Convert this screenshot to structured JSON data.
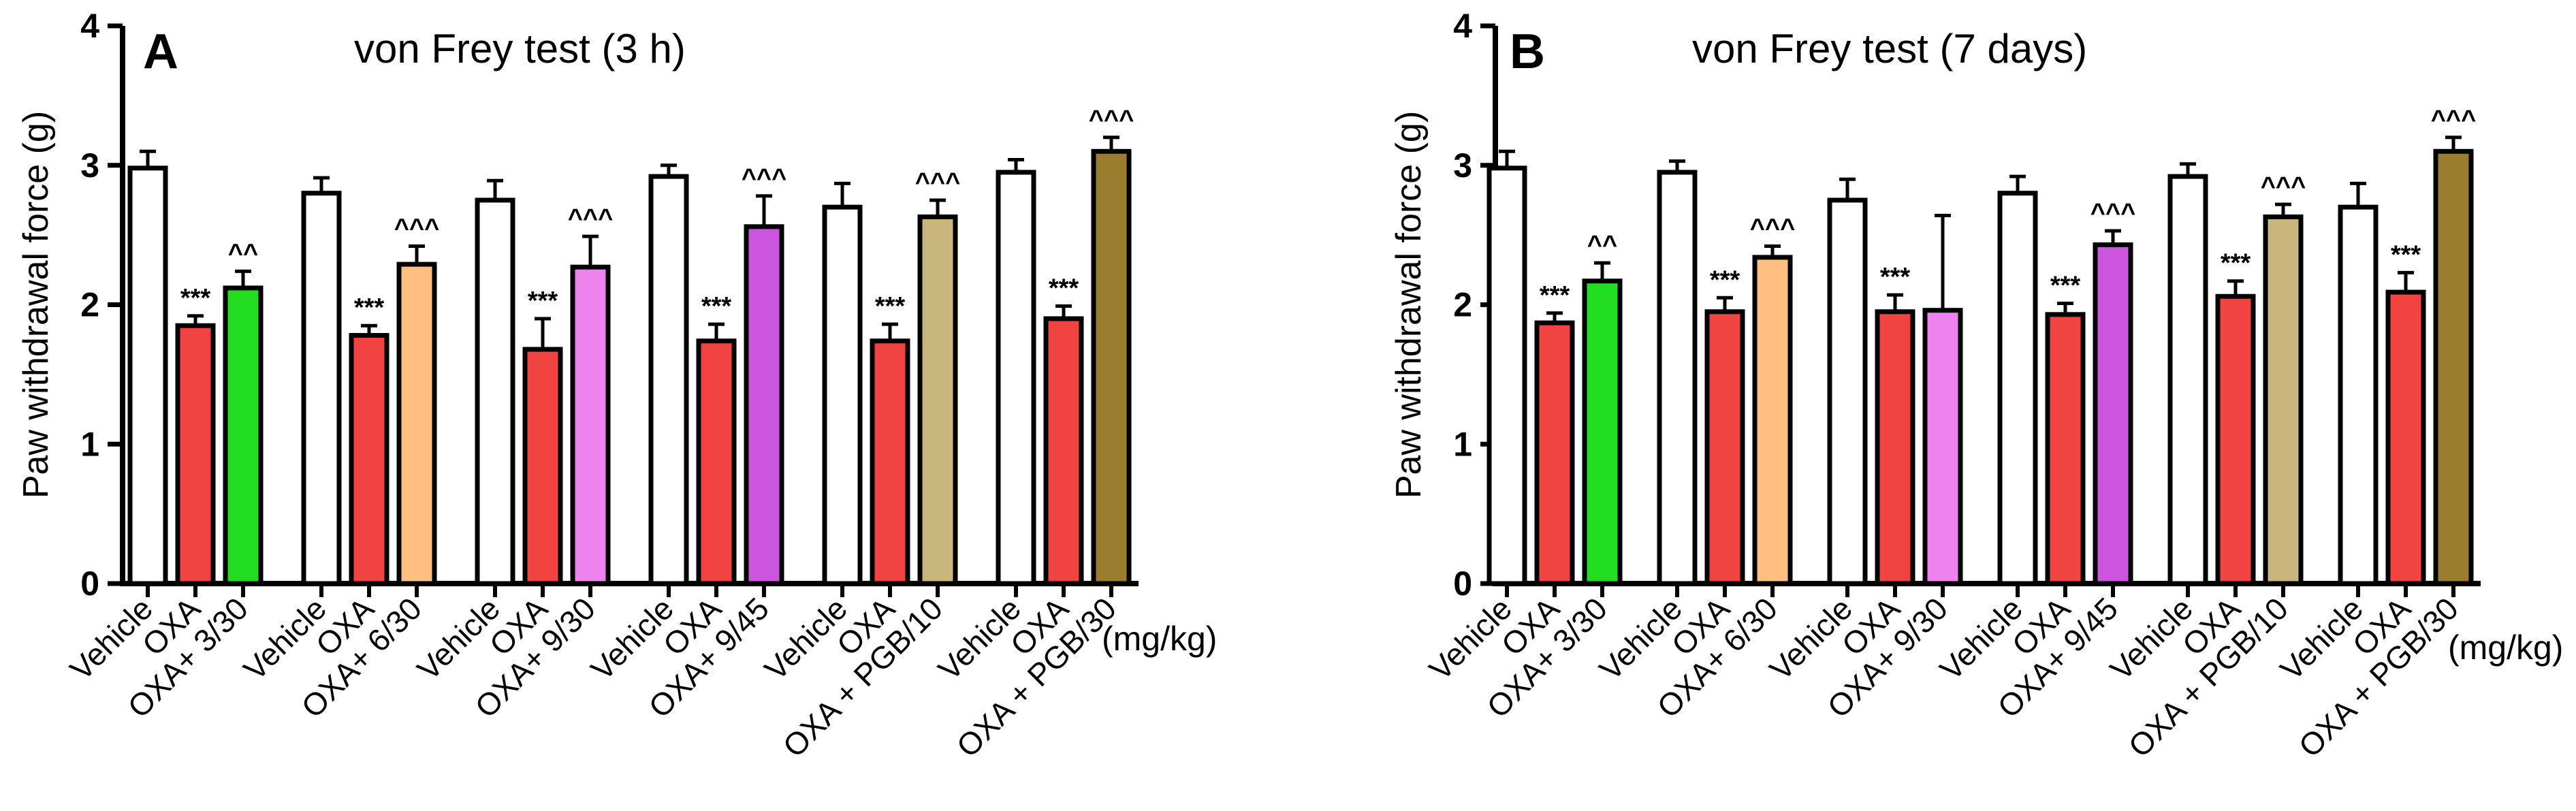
{
  "chart_data": [
    {
      "type": "bar",
      "panel": "A",
      "title": "von Frey test (3 h)",
      "ylabel": "Paw withdrawal force (g)",
      "xlabel": "",
      "unit_label": "(mg/kg)",
      "ylim": [
        0,
        4
      ],
      "yticks": [
        "0",
        "1",
        "2",
        "3",
        "4"
      ],
      "groups": [
        {
          "bars": [
            {
              "label": "Vehicle",
              "value": 2.98,
              "error": 0.12,
              "color": "#ffffff",
              "sig": ""
            },
            {
              "label": "OXA",
              "value": 1.85,
              "error": 0.07,
              "color": "#f24343",
              "sig": "***"
            },
            {
              "label": "OXA+ 3/30",
              "value": 2.12,
              "error": 0.12,
              "color": "#22dd22",
              "sig": "^^"
            }
          ]
        },
        {
          "bars": [
            {
              "label": "Vehicle",
              "value": 2.8,
              "error": 0.11,
              "color": "#ffffff",
              "sig": ""
            },
            {
              "label": "OXA",
              "value": 1.78,
              "error": 0.07,
              "color": "#f24343",
              "sig": "***"
            },
            {
              "label": "OXA+ 6/30",
              "value": 2.29,
              "error": 0.13,
              "color": "#ffbf80",
              "sig": "^^^"
            }
          ]
        },
        {
          "bars": [
            {
              "label": "Vehicle",
              "value": 2.75,
              "error": 0.14,
              "color": "#ffffff",
              "sig": ""
            },
            {
              "label": "OXA",
              "value": 1.68,
              "error": 0.22,
              "color": "#f24343",
              "sig": "***"
            },
            {
              "label": "OXA+ 9/30",
              "value": 2.27,
              "error": 0.22,
              "color": "#ee82ee",
              "sig": "^^^"
            }
          ]
        },
        {
          "bars": [
            {
              "label": "Vehicle",
              "value": 2.92,
              "error": 0.08,
              "color": "#ffffff",
              "sig": ""
            },
            {
              "label": "OXA",
              "value": 1.74,
              "error": 0.12,
              "color": "#f24343",
              "sig": "***"
            },
            {
              "label": "OXA+ 9/45",
              "value": 2.56,
              "error": 0.22,
              "color": "#cc55dd",
              "sig": "^^^"
            }
          ]
        },
        {
          "bars": [
            {
              "label": "Vehicle",
              "value": 2.7,
              "error": 0.17,
              "color": "#ffffff",
              "sig": ""
            },
            {
              "label": "OXA",
              "value": 1.74,
              "error": 0.12,
              "color": "#f24343",
              "sig": "***"
            },
            {
              "label": "OXA + PGB/10",
              "value": 2.63,
              "error": 0.12,
              "color": "#c8b67e",
              "sig": "^^^"
            }
          ]
        },
        {
          "bars": [
            {
              "label": "Vehicle",
              "value": 2.95,
              "error": 0.09,
              "color": "#ffffff",
              "sig": ""
            },
            {
              "label": "OXA",
              "value": 1.9,
              "error": 0.09,
              "color": "#f24343",
              "sig": "***"
            },
            {
              "label": "OXA + PGB/30",
              "value": 3.1,
              "error": 0.1,
              "color": "#9a7d2e",
              "sig": "^^^"
            }
          ]
        }
      ]
    },
    {
      "type": "bar",
      "panel": "B",
      "title": "von Frey test (7 days)",
      "ylabel": "Paw withdrawal force (g)",
      "xlabel": "",
      "unit_label": "(mg/kg)",
      "ylim": [
        0,
        4
      ],
      "yticks": [
        "0",
        "1",
        "2",
        "3",
        "4"
      ],
      "groups": [
        {
          "bars": [
            {
              "label": "Vehicle",
              "value": 2.98,
              "error": 0.12,
              "color": "#ffffff",
              "sig": ""
            },
            {
              "label": "OXA",
              "value": 1.87,
              "error": 0.07,
              "color": "#f24343",
              "sig": "***"
            },
            {
              "label": "OXA+ 3/30",
              "value": 2.17,
              "error": 0.13,
              "color": "#22dd22",
              "sig": "^^"
            }
          ]
        },
        {
          "bars": [
            {
              "label": "Vehicle",
              "value": 2.95,
              "error": 0.08,
              "color": "#ffffff",
              "sig": ""
            },
            {
              "label": "OXA",
              "value": 1.95,
              "error": 0.1,
              "color": "#f24343",
              "sig": "***"
            },
            {
              "label": "OXA+ 6/30",
              "value": 2.34,
              "error": 0.08,
              "color": "#ffbf80",
              "sig": "^^^"
            }
          ]
        },
        {
          "bars": [
            {
              "label": "Vehicle",
              "value": 2.75,
              "error": 0.15,
              "color": "#ffffff",
              "sig": ""
            },
            {
              "label": "OXA",
              "value": 1.95,
              "error": 0.12,
              "color": "#f24343",
              "sig": "***"
            },
            {
              "label": "OXA+ 9/30",
              "value": 1.96,
              "error": 0.68,
              "color": "#ee82ee",
              "sig": ""
            }
          ]
        },
        {
          "bars": [
            {
              "label": "Vehicle",
              "value": 2.8,
              "error": 0.12,
              "color": "#ffffff",
              "sig": ""
            },
            {
              "label": "OXA",
              "value": 1.93,
              "error": 0.08,
              "color": "#f24343",
              "sig": "***"
            },
            {
              "label": "OXA+ 9/45",
              "value": 2.43,
              "error": 0.1,
              "color": "#cc55dd",
              "sig": "^^^"
            }
          ]
        },
        {
          "bars": [
            {
              "label": "Vehicle",
              "value": 2.92,
              "error": 0.09,
              "color": "#ffffff",
              "sig": ""
            },
            {
              "label": "OXA",
              "value": 2.06,
              "error": 0.11,
              "color": "#f24343",
              "sig": "***"
            },
            {
              "label": "OXA + PGB/10",
              "value": 2.63,
              "error": 0.09,
              "color": "#c8b67e",
              "sig": "^^^"
            }
          ]
        },
        {
          "bars": [
            {
              "label": "Vehicle",
              "value": 2.7,
              "error": 0.17,
              "color": "#ffffff",
              "sig": ""
            },
            {
              "label": "OXA",
              "value": 2.09,
              "error": 0.14,
              "color": "#f24343",
              "sig": "***"
            },
            {
              "label": "OXA + PGB/30",
              "value": 3.1,
              "error": 0.1,
              "color": "#9a7d2e",
              "sig": "^^^"
            }
          ]
        }
      ]
    }
  ]
}
